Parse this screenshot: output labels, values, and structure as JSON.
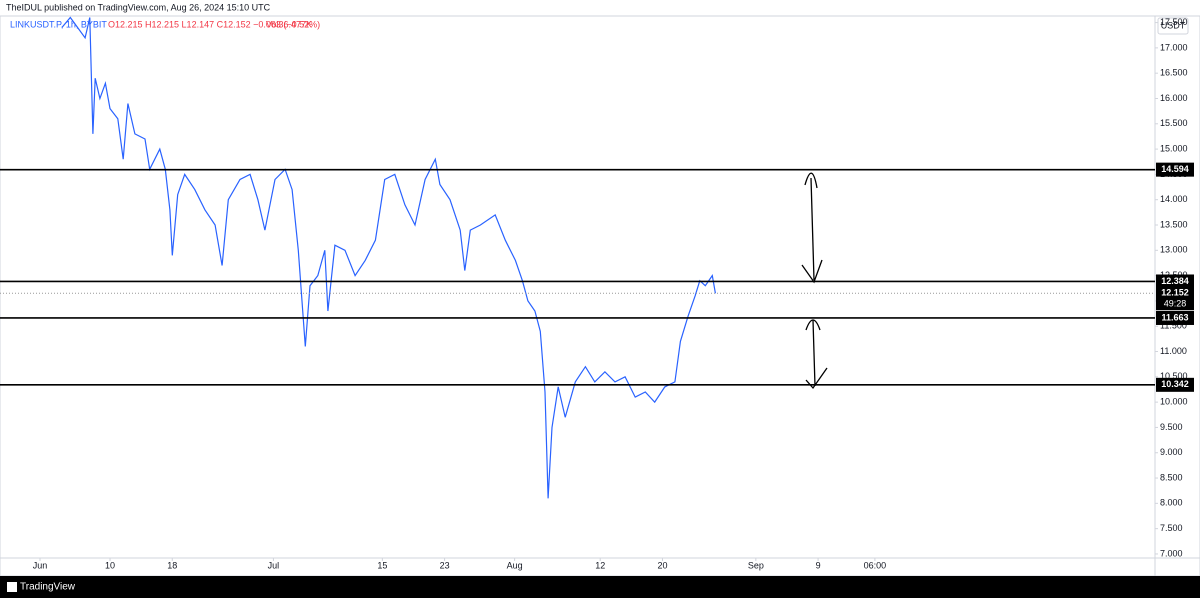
{
  "header": {
    "published": "TheIDUL published on TradingView.com, Aug 26, 2024 15:10 UTC"
  },
  "chart_data": {
    "type": "line",
    "symbol": "LINKUSDT.P, 1h, BYBIT",
    "ohlc": "O12.215 H12.215 L12.147 C12.152 −0.063 (−0.52%)",
    "volume": "Vol36.477K",
    "currency": "USDT",
    "x": [
      2.8,
      3.9,
      5.8,
      6.4,
      6.8,
      7.1,
      7.7,
      8.4,
      9.0,
      10.0,
      10.7,
      11.3,
      12.2,
      13.5,
      14.1,
      15.4,
      16.1,
      16.7,
      17.0,
      17.7,
      18.6,
      19.9,
      21.2,
      22.5,
      23.4,
      24.2,
      25.7,
      27.0,
      28.0,
      28.9,
      30.2,
      31.5,
      32.4,
      33.2,
      34.1,
      34.7,
      35.7,
      36.6,
      37.0,
      37.9,
      39.2,
      40.5,
      41.8,
      43.1,
      44.3,
      45.6,
      46.9,
      48.2,
      49.5,
      50.8,
      51.4,
      52.7,
      54.0,
      54.6,
      55.3,
      56.6,
      58.5,
      59.8,
      61.1,
      62.0,
      62.7,
      63.6,
      64.3,
      64.9,
      65.3,
      65.8,
      66.6,
      67.5,
      68.8,
      70.1,
      71.3,
      72.6,
      73.9,
      75.2,
      76.5,
      77.8,
      79.0,
      80.3,
      81.6,
      82.3,
      83.3,
      84.2,
      84.8,
      85.5,
      86.4,
      86.8
    ],
    "series": [
      {
        "name": "LINKUSDT.P",
        "color": "#2962ff",
        "values": [
          17.4,
          17.6,
          17.2,
          17.6,
          15.3,
          16.4,
          16.0,
          16.3,
          15.8,
          15.6,
          14.8,
          15.9,
          15.3,
          15.2,
          14.6,
          15.0,
          14.6,
          13.8,
          12.9,
          14.1,
          14.5,
          14.2,
          13.8,
          13.5,
          12.7,
          14.0,
          14.4,
          14.5,
          14.0,
          13.4,
          14.4,
          14.6,
          14.2,
          13.0,
          11.1,
          12.3,
          12.5,
          13.0,
          11.8,
          13.1,
          13.0,
          12.5,
          12.8,
          13.2,
          14.4,
          14.5,
          13.9,
          13.5,
          14.4,
          14.8,
          14.3,
          14.0,
          13.4,
          12.6,
          13.4,
          13.5,
          13.7,
          13.2,
          12.8,
          12.4,
          12.0,
          11.8,
          11.4,
          10.2,
          8.1,
          9.5,
          10.3,
          9.7,
          10.4,
          10.7,
          10.4,
          10.6,
          10.4,
          10.5,
          10.1,
          10.2,
          10.0,
          10.3,
          10.4,
          11.2,
          11.7,
          12.1,
          12.4,
          12.3,
          12.5,
          12.15
        ]
      }
    ],
    "levels": [
      14.594,
      12.384,
      11.663,
      10.342
    ],
    "last_price": 12.152,
    "countdown": "49:28",
    "xlim": [
      -5.14,
      143.3
    ],
    "xticks": [
      {
        "value": 0,
        "label": "Jun"
      },
      {
        "value": 9,
        "label": "10"
      },
      {
        "value": 17,
        "label": "18"
      },
      {
        "value": 30,
        "label": "Jul"
      },
      {
        "value": 44,
        "label": "15"
      },
      {
        "value": 52,
        "label": "23"
      },
      {
        "value": 61,
        "label": "Aug"
      },
      {
        "value": 72,
        "label": "12"
      },
      {
        "value": 80,
        "label": "20"
      },
      {
        "value": 92,
        "label": "Sep"
      },
      {
        "value": 100,
        "label": "9"
      },
      {
        "value": 107.3,
        "label": "06:00"
      }
    ],
    "ylim": [
      6.92,
      17.63
    ],
    "yticks": [
      {
        "value": 7,
        "label": "7.000"
      },
      {
        "value": 7.5,
        "label": "7.500"
      },
      {
        "value": 8,
        "label": "8.000"
      },
      {
        "value": 8.5,
        "label": "8.500"
      },
      {
        "value": 9,
        "label": "9.000"
      },
      {
        "value": 9.5,
        "label": "9.500"
      },
      {
        "value": 10,
        "label": "10.000"
      },
      {
        "value": 10.5,
        "label": "10.500"
      },
      {
        "value": 11,
        "label": "11.000"
      },
      {
        "value": 11.5,
        "label": "11.500"
      },
      {
        "value": 12,
        "label": "12.000"
      },
      {
        "value": 12.5,
        "label": "12.500"
      },
      {
        "value": 13,
        "label": "13.000"
      },
      {
        "value": 13.5,
        "label": "13.500"
      },
      {
        "value": 14,
        "label": "14.000"
      },
      {
        "value": 14.5,
        "label": "14.500"
      },
      {
        "value": 15,
        "label": "15.000"
      },
      {
        "value": 15.5,
        "label": "15.500"
      },
      {
        "value": 16,
        "label": "16.000"
      },
      {
        "value": 16.5,
        "label": "16.500"
      },
      {
        "value": 17,
        "label": "17.000"
      },
      {
        "value": 17.5,
        "label": "17.500"
      }
    ],
    "grid": false
  },
  "footer": {
    "brand": "TradingView"
  }
}
